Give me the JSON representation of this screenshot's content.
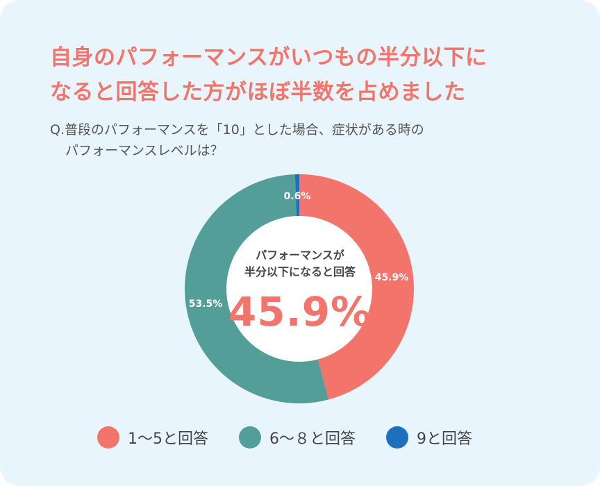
{
  "headline": {
    "line1": "自身のパフォーマンスがいつもの半分以下に",
    "line2": "なると回答した方がほぼ半数を占めました"
  },
  "question": {
    "line1": "Q.普段のパフォーマンスを「10」とした場合、症状がある時の",
    "line2": "パフォーマンスレベルは？"
  },
  "center": {
    "label_line1": "パフォーマンスが",
    "label_line2": "半分以下になると回答",
    "value": "45.9%"
  },
  "chart_data": {
    "type": "pie",
    "donut": true,
    "categories": [
      "1〜5と回答",
      "6〜８と回答",
      "9と回答"
    ],
    "values": [
      45.9,
      53.5,
      0.6
    ],
    "data_labels": [
      "45.9%",
      "53.5%",
      "0.6%"
    ],
    "colors": [
      "#f2746a",
      "#539e99",
      "#1f6fbf"
    ],
    "legend_position": "bottom"
  }
}
